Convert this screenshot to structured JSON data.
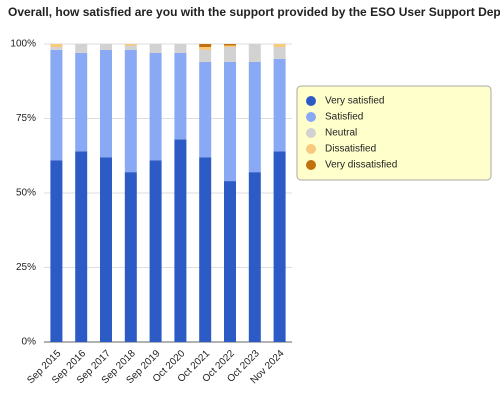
{
  "chart_data": {
    "type": "stacked-bar",
    "title": "Overall, how satisfied are you with the support provided by the ESO User Support Department?",
    "categories": [
      "Sep 2015",
      "Sep 2016",
      "Sep 2017",
      "Sep 2018",
      "Sep 2019",
      "Oct 2020",
      "Oct 2021",
      "Oct 2022",
      "Oct 2023",
      "Nov 2024"
    ],
    "series": [
      {
        "name": "Very satisfied",
        "color": "#2d5bc5",
        "values": [
          61,
          64,
          62,
          57,
          61,
          68,
          62,
          54,
          57,
          64
        ]
      },
      {
        "name": "Satisfied",
        "color": "#89a9f4",
        "values": [
          37,
          33,
          36,
          41,
          36,
          29,
          32,
          40,
          37,
          31
        ]
      },
      {
        "name": "Neutral",
        "color": "#d2d2d2",
        "values": [
          1,
          3,
          2,
          1.5,
          3,
          3,
          4,
          5,
          6,
          4
        ]
      },
      {
        "name": "Dissatisfied",
        "color": "#f8c97c",
        "values": [
          1,
          0,
          0,
          0.5,
          0,
          0,
          1,
          0.5,
          0,
          1
        ]
      },
      {
        "name": "Very dissatisfied",
        "color": "#c2700c",
        "values": [
          0,
          0,
          0,
          0,
          0,
          0,
          1,
          0.5,
          0,
          0
        ]
      }
    ],
    "ylim": [
      0,
      100
    ],
    "yticks": [
      {
        "value": 0,
        "label": "0%"
      },
      {
        "value": 25,
        "label": "25%"
      },
      {
        "value": 50,
        "label": "50%"
      },
      {
        "value": 75,
        "label": "75%"
      },
      {
        "value": 100,
        "label": "100%"
      }
    ],
    "grid": true,
    "legend": "right"
  }
}
